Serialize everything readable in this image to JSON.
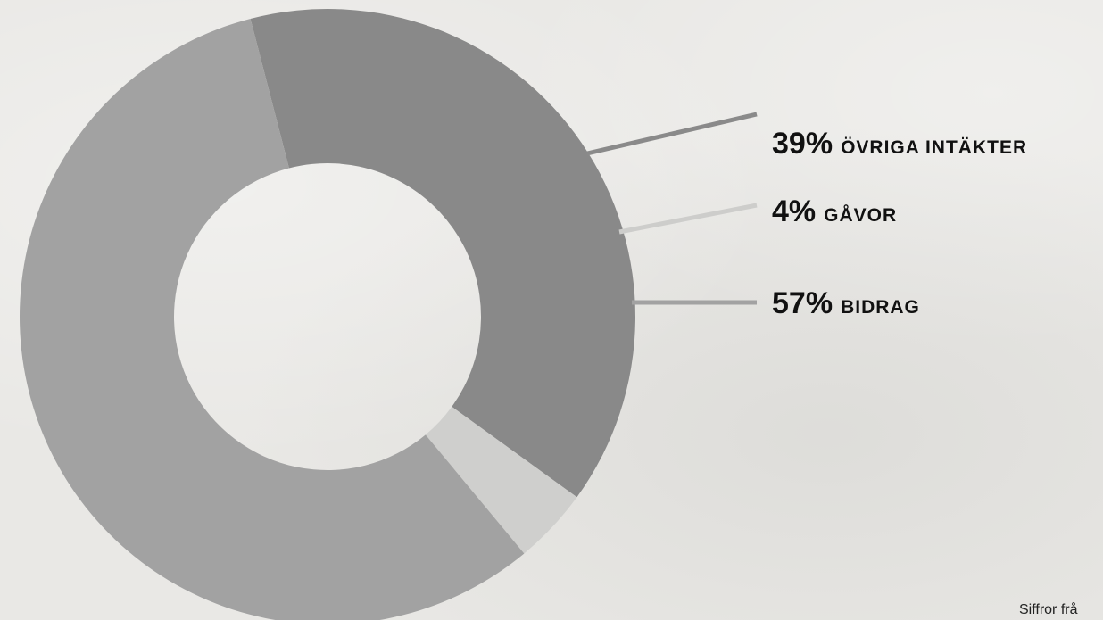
{
  "chart_data": {
    "type": "pie",
    "variant": "donut",
    "slices": [
      {
        "percent": "39%",
        "value": 39,
        "name": "ÖVRIGA INTÄKTER",
        "color": "#898989",
        "line_color": "#8a8a8a"
      },
      {
        "percent": "4%",
        "value": 4,
        "name": "GÅVOR",
        "color": "#cfcfcd",
        "line_color": "#cdcdcb"
      },
      {
        "percent": "57%",
        "value": 57,
        "name": "BIDRAG",
        "color": "#a2a2a2",
        "line_color": "#a2a2a2"
      }
    ],
    "legend_placement": "right"
  },
  "footnote": "Siffror frå"
}
